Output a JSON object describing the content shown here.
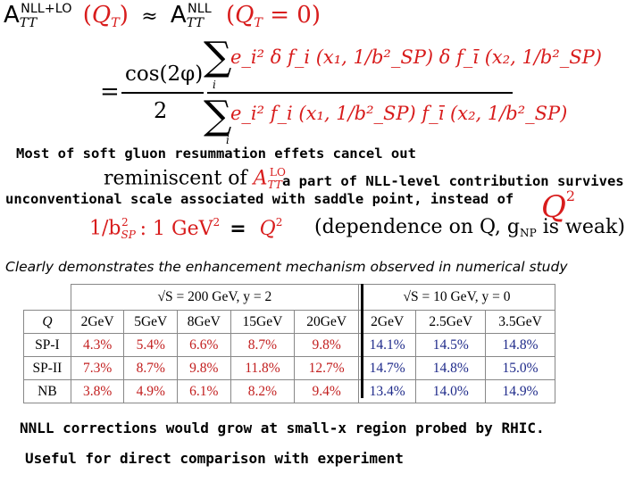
{
  "formula_top": {
    "lhs_A": "A",
    "lhs_TT": "TT",
    "lhs_sup": "NLL+LO",
    "Q": "Q",
    "T": "T",
    "approx": "≈",
    "rhs_A": "A",
    "rhs_TT": "TT",
    "rhs_sup": "NLL",
    "eq0": "= 0"
  },
  "formula_frac": {
    "equals": "=",
    "cos": "cos(2φ)",
    "two": "2",
    "numerator": "e_i² δ f_i (x₁, 1/b²_SP) δ f_ī (x₂, 1/b²_SP)",
    "denominator": "e_i² f_i (x₁, 1/b²_SP) f_ī (x₂, 1/b²_SP)",
    "sum_index": "i"
  },
  "text": {
    "line1": "Most of soft gluon resummation effets cancel out",
    "reminiscent": "reminiscent of",
    "A_TT_LO": "A",
    "survives": "a part of NLL-level contribution survives",
    "unconventional": "unconventional scale associated with saddle point, instead of",
    "Q2": "Q",
    "scale_lhs": "1/b",
    "scale_colon": ": 1 GeV",
    "scale_eq": "=",
    "scale_Q2": "Q",
    "dependence": "(dependence on Q, g",
    "weak": "is weak)",
    "clearly": "Clearly demonstrates the enhancement mechanism observed in numerical study",
    "nnll": "NNLL corrections would grow at small-x region probed by RHIC.",
    "useful": "Useful for direct comparison with experiment"
  },
  "table": {
    "header_rhic": "√S = 200 GeV,   y = 2",
    "header_10": "√S = 10 GeV,   y = 0",
    "columns": [
      "Q",
      "2GeV",
      "5GeV",
      "8GeV",
      "15GeV",
      "20GeV",
      "2GeV",
      "2.5GeV",
      "3.5GeV"
    ],
    "rows": [
      [
        "SP-I",
        "4.3%",
        "5.4%",
        "6.6%",
        "8.7%",
        "9.8%",
        "14.1%",
        "14.5%",
        "14.8%"
      ],
      [
        "SP-II",
        "7.3%",
        "8.7%",
        "9.8%",
        "11.8%",
        "12.7%",
        "14.7%",
        "14.8%",
        "15.0%"
      ],
      [
        "NB",
        "3.8%",
        "4.9%",
        "6.1%",
        "8.2%",
        "9.4%",
        "13.4%",
        "14.0%",
        "14.9%"
      ]
    ]
  },
  "colors": {
    "accent_red": "#d81c1c",
    "table_red": "#c21e1e",
    "table_blue": "#1e2a8a"
  }
}
